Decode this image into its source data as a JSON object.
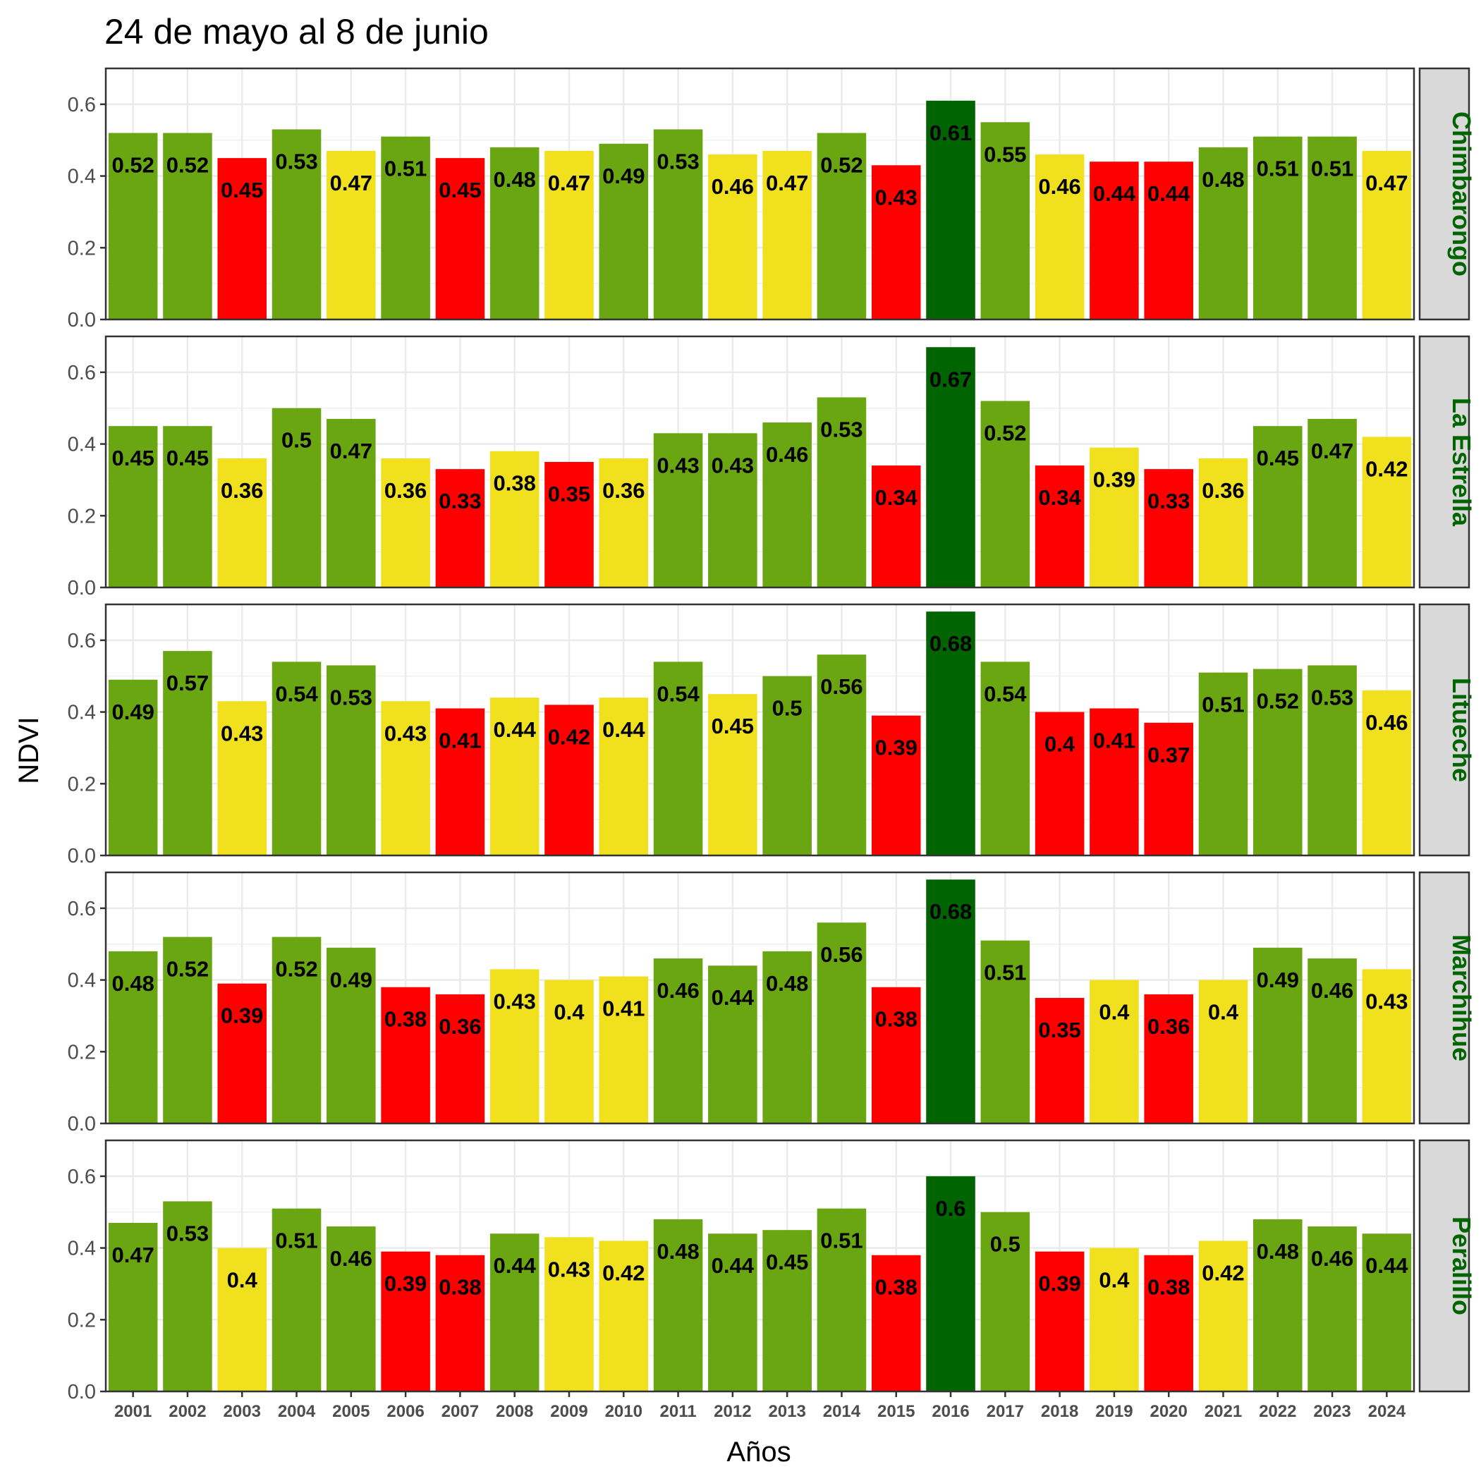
{
  "chart_data": {
    "type": "bar",
    "title": "24 de mayo al 8 de junio",
    "xlabel": "Años",
    "ylabel": "NDVI",
    "ylim": [
      0,
      0.7
    ],
    "yticks": [
      "0.0",
      "0.2",
      "0.4",
      "0.6"
    ],
    "grid": true,
    "facet_layout": "rows, strip labels on right",
    "categories": [
      "2001",
      "2002",
      "2003",
      "2004",
      "2005",
      "2006",
      "2007",
      "2008",
      "2009",
      "2010",
      "2011",
      "2012",
      "2013",
      "2014",
      "2015",
      "2016",
      "2017",
      "2018",
      "2019",
      "2020",
      "2021",
      "2022",
      "2023",
      "2024"
    ],
    "colors": {
      "green": "#6aa512",
      "yellow": "#f0e01e",
      "red": "#ff0000",
      "darkgreen": "#006400"
    },
    "panels": [
      {
        "name": "Chimbarongo",
        "values": [
          0.52,
          0.52,
          0.45,
          0.53,
          0.47,
          0.51,
          0.45,
          0.48,
          0.47,
          0.49,
          0.53,
          0.46,
          0.47,
          0.52,
          0.43,
          0.61,
          0.55,
          0.46,
          0.44,
          0.44,
          0.48,
          0.51,
          0.51,
          0.47
        ],
        "labels": [
          "0.52",
          "0.52",
          "0.45",
          "0.53",
          "0.47",
          "0.51",
          "0.45",
          "0.48",
          "0.47",
          "0.49",
          "0.53",
          "0.46",
          "0.47",
          "0.52",
          "0.43",
          "0.61",
          "0.55",
          "0.46",
          "0.44",
          "0.44",
          "0.48",
          "0.51",
          "0.51",
          "0.47"
        ],
        "classes": [
          "green",
          "green",
          "red",
          "green",
          "yellow",
          "green",
          "red",
          "green",
          "yellow",
          "green",
          "green",
          "yellow",
          "yellow",
          "green",
          "red",
          "darkgreen",
          "green",
          "yellow",
          "red",
          "red",
          "green",
          "green",
          "green",
          "yellow"
        ]
      },
      {
        "name": "La Estrella",
        "values": [
          0.45,
          0.45,
          0.36,
          0.5,
          0.47,
          0.36,
          0.33,
          0.38,
          0.35,
          0.36,
          0.43,
          0.43,
          0.46,
          0.53,
          0.34,
          0.67,
          0.52,
          0.34,
          0.39,
          0.33,
          0.36,
          0.45,
          0.47,
          0.42
        ],
        "labels": [
          "0.45",
          "0.45",
          "0.36",
          "0.5",
          "0.47",
          "0.36",
          "0.33",
          "0.38",
          "0.35",
          "0.36",
          "0.43",
          "0.43",
          "0.46",
          "0.53",
          "0.34",
          "0.67",
          "0.52",
          "0.34",
          "0.39",
          "0.33",
          "0.36",
          "0.45",
          "0.47",
          "0.42"
        ],
        "classes": [
          "green",
          "green",
          "yellow",
          "green",
          "green",
          "yellow",
          "red",
          "yellow",
          "red",
          "yellow",
          "green",
          "green",
          "green",
          "green",
          "red",
          "darkgreen",
          "green",
          "red",
          "yellow",
          "red",
          "yellow",
          "green",
          "green",
          "yellow"
        ]
      },
      {
        "name": "Litueche",
        "values": [
          0.49,
          0.57,
          0.43,
          0.54,
          0.53,
          0.43,
          0.41,
          0.44,
          0.42,
          0.44,
          0.54,
          0.45,
          0.5,
          0.56,
          0.39,
          0.68,
          0.54,
          0.4,
          0.41,
          0.37,
          0.51,
          0.52,
          0.53,
          0.46
        ],
        "labels": [
          "0.49",
          "0.57",
          "0.43",
          "0.54",
          "0.53",
          "0.43",
          "0.41",
          "0.44",
          "0.42",
          "0.44",
          "0.54",
          "0.45",
          "0.5",
          "0.56",
          "0.39",
          "0.68",
          "0.54",
          "0.4",
          "0.41",
          "0.37",
          "0.51",
          "0.52",
          "0.53",
          "0.46"
        ],
        "classes": [
          "green",
          "green",
          "yellow",
          "green",
          "green",
          "yellow",
          "red",
          "yellow",
          "red",
          "yellow",
          "green",
          "yellow",
          "green",
          "green",
          "red",
          "darkgreen",
          "green",
          "red",
          "red",
          "red",
          "green",
          "green",
          "green",
          "yellow"
        ]
      },
      {
        "name": "Marchihue",
        "values": [
          0.48,
          0.52,
          0.39,
          0.52,
          0.49,
          0.38,
          0.36,
          0.43,
          0.4,
          0.41,
          0.46,
          0.44,
          0.48,
          0.56,
          0.38,
          0.68,
          0.51,
          0.35,
          0.4,
          0.36,
          0.4,
          0.49,
          0.46,
          0.43
        ],
        "labels": [
          "0.48",
          "0.52",
          "0.39",
          "0.52",
          "0.49",
          "0.38",
          "0.36",
          "0.43",
          "0.4",
          "0.41",
          "0.46",
          "0.44",
          "0.48",
          "0.56",
          "0.38",
          "0.68",
          "0.51",
          "0.35",
          "0.4",
          "0.36",
          "0.4",
          "0.49",
          "0.46",
          "0.43"
        ],
        "classes": [
          "green",
          "green",
          "red",
          "green",
          "green",
          "red",
          "red",
          "yellow",
          "yellow",
          "yellow",
          "green",
          "green",
          "green",
          "green",
          "red",
          "darkgreen",
          "green",
          "red",
          "yellow",
          "red",
          "yellow",
          "green",
          "green",
          "yellow"
        ]
      },
      {
        "name": "Peralillo",
        "values": [
          0.47,
          0.53,
          0.4,
          0.51,
          0.46,
          0.39,
          0.38,
          0.44,
          0.43,
          0.42,
          0.48,
          0.44,
          0.45,
          0.51,
          0.38,
          0.6,
          0.5,
          0.39,
          0.4,
          0.38,
          0.42,
          0.48,
          0.46,
          0.44
        ],
        "labels": [
          "0.47",
          "0.53",
          "0.4",
          "0.51",
          "0.46",
          "0.39",
          "0.38",
          "0.44",
          "0.43",
          "0.42",
          "0.48",
          "0.44",
          "0.45",
          "0.51",
          "0.38",
          "0.6",
          "0.5",
          "0.39",
          "0.4",
          "0.38",
          "0.42",
          "0.48",
          "0.46",
          "0.44"
        ],
        "classes": [
          "green",
          "green",
          "yellow",
          "green",
          "green",
          "red",
          "red",
          "green",
          "yellow",
          "yellow",
          "green",
          "green",
          "green",
          "green",
          "red",
          "darkgreen",
          "green",
          "red",
          "yellow",
          "red",
          "yellow",
          "green",
          "green",
          "green"
        ]
      }
    ]
  }
}
